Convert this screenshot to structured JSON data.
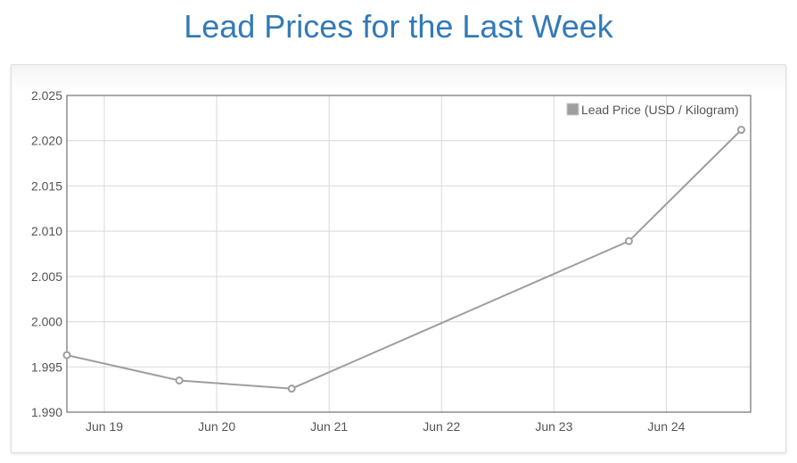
{
  "page": {
    "title": "Lead Prices for the Last Week"
  },
  "colors": {
    "title": "#337ab7",
    "series": "#9e9e9e",
    "grid": "#d9d9d9",
    "axis": "#545454"
  },
  "chart_data": {
    "type": "line",
    "x_ticks": [
      "Jun 19",
      "Jun 20",
      "Jun 21",
      "Jun 22",
      "Jun 23",
      "Jun 24"
    ],
    "y_ticks": [
      "2.025",
      "2.020",
      "2.015",
      "2.010",
      "2.005",
      "2.000",
      "1.995",
      "1.990"
    ],
    "xlim": [
      "2023-06-18T16:00",
      "2023-06-24T18:00"
    ],
    "ylim": [
      1.99,
      2.025
    ],
    "grid": true,
    "legend_position": "top-right",
    "series": [
      {
        "name": "Lead Price (USD / Kilogram)",
        "points": [
          {
            "x": "2023-06-18T16:00",
            "y": 1.9963
          },
          {
            "x": "2023-06-19T16:00",
            "y": 1.9935
          },
          {
            "x": "2023-06-20T16:00",
            "y": 1.9926
          },
          {
            "x": "2023-06-23T16:00",
            "y": 2.0089
          },
          {
            "x": "2023-06-24T16:00",
            "y": 2.0212
          }
        ]
      }
    ]
  }
}
